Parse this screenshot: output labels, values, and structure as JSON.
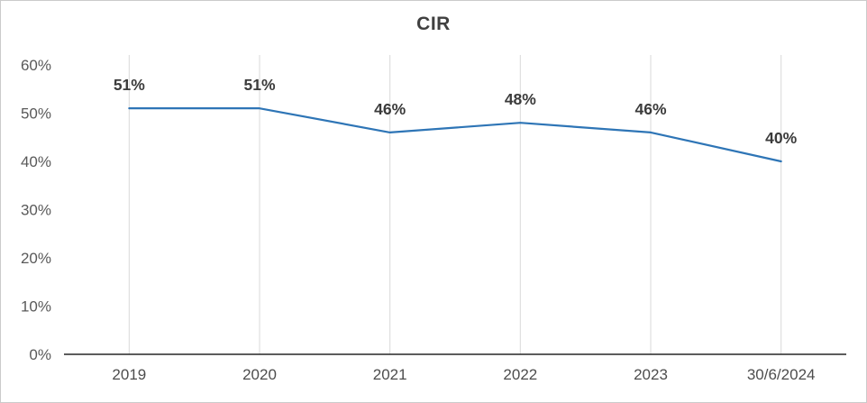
{
  "chart_data": {
    "type": "line",
    "title": "CIR",
    "categories": [
      "2019",
      "2020",
      "2021",
      "2022",
      "2023",
      "30/6/2024"
    ],
    "values": [
      51,
      51,
      46,
      48,
      46,
      40
    ],
    "data_labels": [
      "51%",
      "51%",
      "46%",
      "48%",
      "46%",
      "40%"
    ],
    "y_ticks": [
      {
        "value": 0,
        "label": "0%"
      },
      {
        "value": 10,
        "label": "10%"
      },
      {
        "value": 20,
        "label": "20%"
      },
      {
        "value": 30,
        "label": "30%"
      },
      {
        "value": 40,
        "label": "40%"
      },
      {
        "value": 50,
        "label": "50%"
      },
      {
        "value": 60,
        "label": "60%"
      }
    ],
    "xlabel": "",
    "ylabel": "",
    "ylim": [
      0,
      60
    ],
    "grid": "vertical-major-only",
    "legend": "none",
    "line_color": "#2e75b6",
    "gridline_color": "#d9d9d9",
    "axis_line_color": "#262626",
    "tick_label_color": "#595959",
    "data_label_color": "#3b3b3b",
    "title_color": "#404040"
  }
}
